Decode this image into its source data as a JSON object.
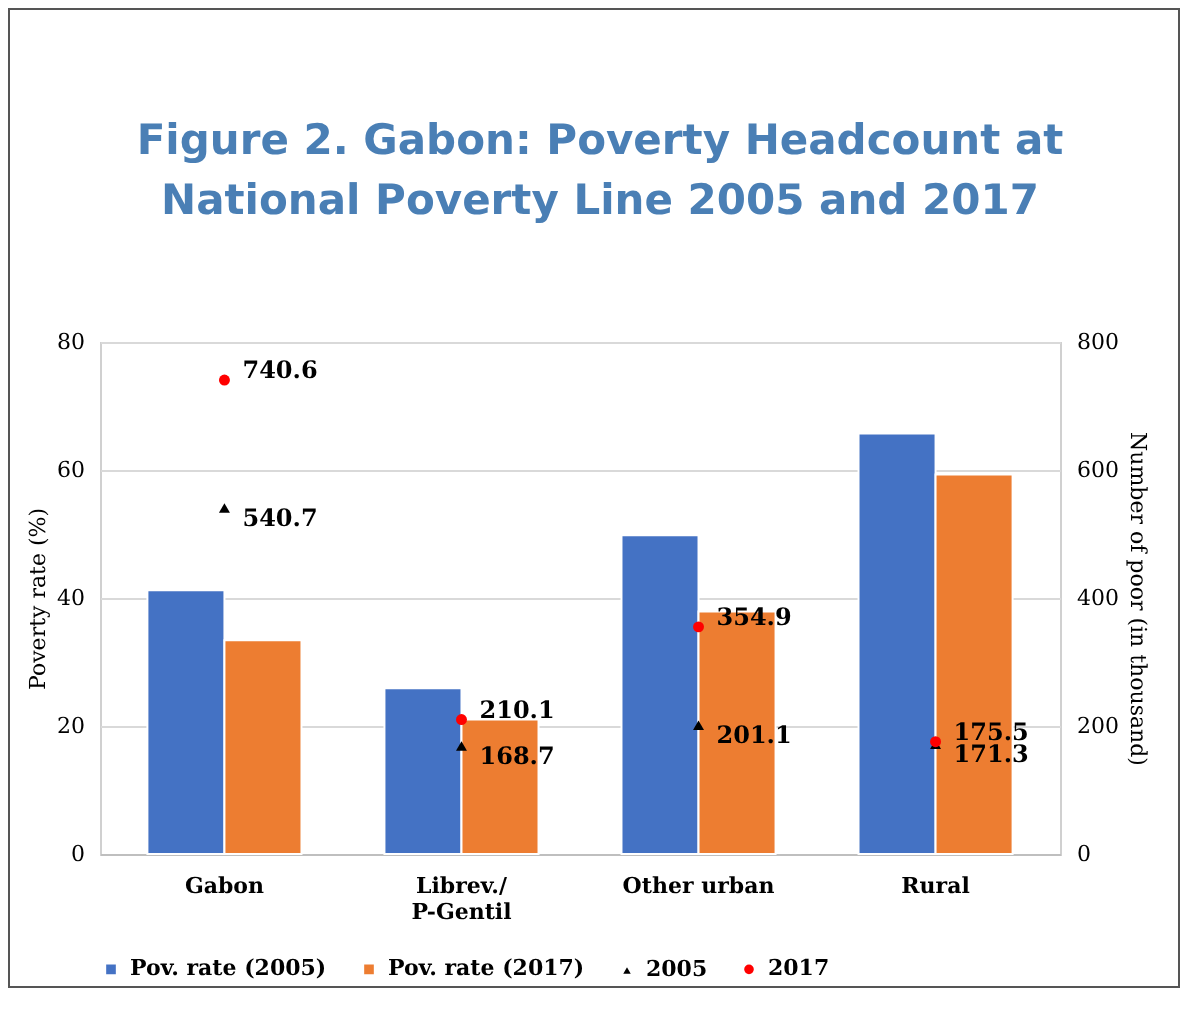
{
  "chart_data": {
    "type": "bar",
    "title": "Figure 2. Gabon: Poverty Headcount at National Poverty Line 2005 and 2017",
    "categories": [
      "Gabon",
      "Librev./\nP-Gentil",
      "Other urban",
      "Rural"
    ],
    "ylabel": "Poverty rate (%)",
    "y2label": "Number of poor (in thousand)",
    "ylim": [
      0,
      80
    ],
    "yticks": [
      0,
      20,
      40,
      60,
      80
    ],
    "y2lim": [
      0,
      800
    ],
    "y2ticks": [
      0,
      200,
      400,
      600,
      800
    ],
    "grid": "y",
    "legend": "bottom",
    "series": [
      {
        "name": "Pov. rate (2005)",
        "color": "#4472c4",
        "values": [
          41.2,
          25.9,
          49.8,
          65.7
        ]
      },
      {
        "name": "Pov. rate (2017)",
        "color": "#ed7d31",
        "values": [
          33.4,
          21.0,
          37.9,
          59.3
        ]
      },
      {
        "name": "2005",
        "type": "scatter",
        "axis": "y2",
        "marker": "triangle",
        "color": "#000000",
        "values": [
          540.7,
          168.7,
          201.1,
          171.3
        ],
        "value_labels": [
          "540.7",
          "168.7",
          "201.1",
          "171.3"
        ]
      },
      {
        "name": "2017",
        "type": "scatter",
        "axis": "y2",
        "marker": "circle",
        "color": "#ff0000",
        "values": [
          740.6,
          210.1,
          354.9,
          175.5
        ],
        "value_labels": [
          "740.6",
          "210.1",
          "354.9",
          "175.5"
        ]
      }
    ]
  }
}
